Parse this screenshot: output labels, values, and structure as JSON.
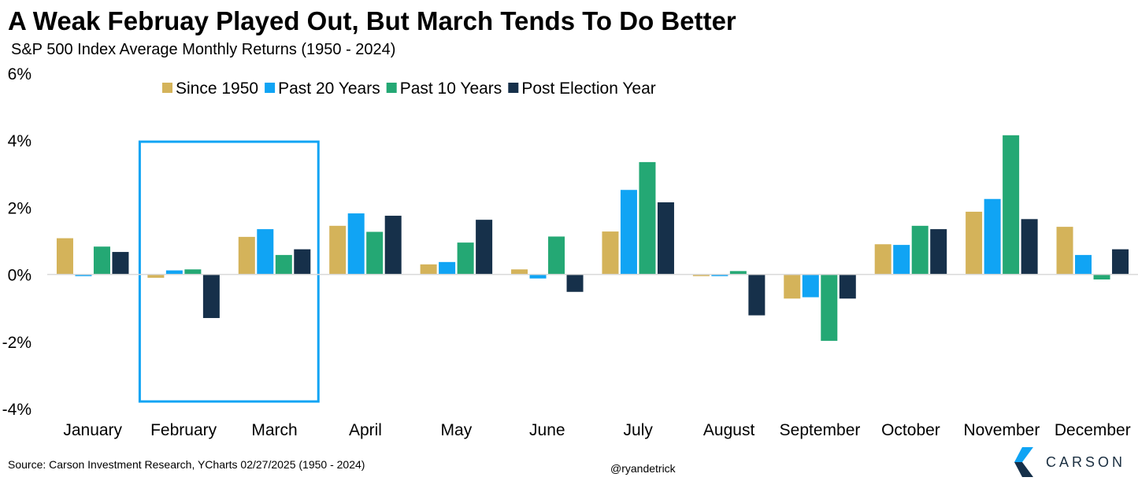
{
  "title": "A Weak Februay Played Out, But March Tends To Do Better",
  "subtitle": "S&P 500 Index Average Monthly Returns (1950 - 2024)",
  "source": "Source: Carson Investment Research, YCharts 02/27/2025 (1950 - 2024)",
  "handle": "@ryandetrick",
  "brand": "CARSON",
  "chart_data": {
    "type": "bar",
    "categories": [
      "January",
      "February",
      "March",
      "April",
      "May",
      "June",
      "July",
      "August",
      "September",
      "October",
      "November",
      "December"
    ],
    "series": [
      {
        "name": "Since 1950",
        "color": "#D4B35A",
        "values": [
          1.08,
          -0.1,
          1.12,
          1.45,
          0.3,
          0.15,
          1.28,
          -0.05,
          -0.72,
          0.9,
          1.87,
          1.42
        ]
      },
      {
        "name": "Past 20 Years",
        "color": "#10A4F4",
        "values": [
          -0.05,
          0.12,
          1.35,
          1.82,
          0.37,
          -0.12,
          2.52,
          -0.05,
          -0.68,
          0.88,
          2.25,
          0.58
        ]
      },
      {
        "name": "Past 10 Years",
        "color": "#24A874",
        "values": [
          0.83,
          0.15,
          0.58,
          1.27,
          0.95,
          1.13,
          3.35,
          0.1,
          -1.98,
          1.45,
          4.15,
          -0.15
        ]
      },
      {
        "name": "Post Election Year",
        "color": "#16304A",
        "values": [
          0.67,
          -1.3,
          0.75,
          1.75,
          1.63,
          -0.52,
          2.15,
          -1.22,
          -0.72,
          1.35,
          1.65,
          0.75
        ]
      }
    ],
    "ylim": [
      -4,
      6
    ],
    "y_ticks": [
      -4,
      -2,
      0,
      2,
      4,
      6
    ],
    "y_tick_labels": [
      "-4%",
      "-2%",
      "0%",
      "2%",
      "4%",
      "6%"
    ],
    "legend_position": "top",
    "grid": false,
    "highlight": {
      "label": "February–March highlight box",
      "from": "February",
      "to": "March",
      "color": "#10A4F4"
    }
  }
}
